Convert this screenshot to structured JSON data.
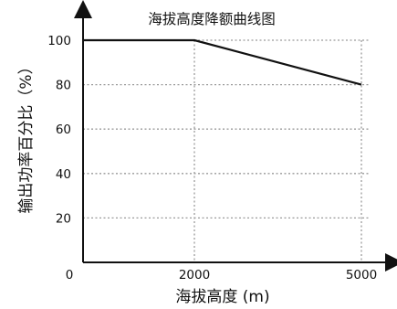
{
  "chart_data": {
    "type": "line",
    "title": "海拔高度降额曲线图",
    "xlabel": "海拔高度 (m)",
    "ylabel": "输出功率百分比（%）",
    "x_ticks": [
      0,
      2000,
      5000
    ],
    "y_ticks": [
      20,
      40,
      60,
      80,
      100
    ],
    "xlim": [
      0,
      5000
    ],
    "ylim": [
      0,
      100
    ],
    "grid": true,
    "grid_style": "dotted",
    "series": [
      {
        "x": [
          0,
          2000,
          5000
        ],
        "values": [
          100,
          100,
          80
        ],
        "color": "#111111"
      }
    ]
  }
}
